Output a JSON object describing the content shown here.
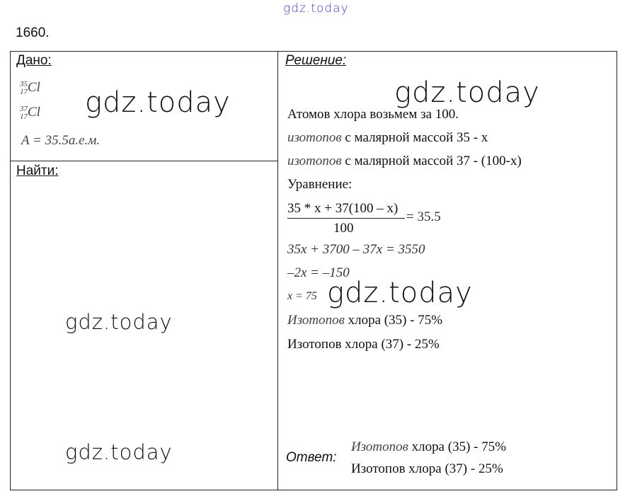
{
  "watermark": "gdz.today",
  "problem_number": "1660.",
  "given": {
    "header": "Дано:",
    "isotope1": {
      "mass": "35",
      "number": "17",
      "symbol": "Cl"
    },
    "isotope2": {
      "mass": "37",
      "number": "17",
      "symbol": "Cl"
    },
    "atomic_mass": "A = 35.5а.е.м."
  },
  "find": {
    "header": "Найти:"
  },
  "solution": {
    "header": "Решение:",
    "lines": {
      "l1": "Атомов хлора возьмем за 100.",
      "l2_it": "изотопов",
      "l2": " с малярной массой 35 - x",
      "l3_it": "изотопов",
      "l3": " с малярной массой 37 - (100-x)",
      "l4": "Уравнение:",
      "frac_num": "35 * x + 37(100 – x)",
      "frac_den": "100",
      "frac_rhs": "= 35.5",
      "l5": "35x + 3700 – 37x = 3550",
      "l6": "–2x = –150",
      "l7": "x = 75",
      "l8_it": "Изотопов",
      "l8": " хлора (35) - 75%",
      "l9": "Изотопов хлора (37) - 25%"
    }
  },
  "answer": {
    "label": "Ответ:",
    "l1_it": "Изотопов",
    "l1": " хлора (35) - 75%",
    "l2": "Изотопов хлора (37) - 25%"
  }
}
